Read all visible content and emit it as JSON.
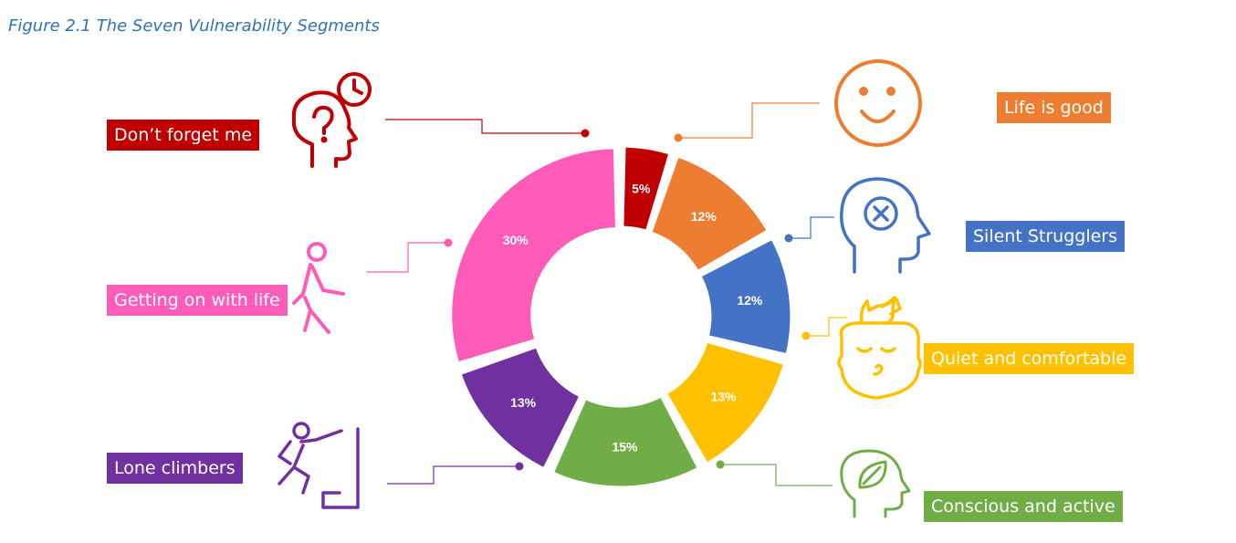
{
  "figure_title": "Figure 2.1 The Seven Vulnerability Segments",
  "colors": {
    "title": "#2E74B5",
    "life_is_good": "#ED7D31",
    "silent_strugglers": "#4472C4",
    "quiet_and_comfortable": "#FFC000",
    "conscious_and_active": "#70AD47",
    "lone_climbers": "#7030A0",
    "getting_on_with_life": "#FF5BB8",
    "dont_forget_me": "#C00000"
  },
  "chart_data": {
    "type": "pie",
    "donut": true,
    "title": "",
    "legend": "callouts around chart",
    "slices": [
      {
        "label": "Don’t forget me",
        "value": 5,
        "display": "5%",
        "color": "#C00000",
        "icon": "head-question-clock-icon"
      },
      {
        "label": "Life is good",
        "value": 12,
        "display": "12%",
        "color": "#ED7D31",
        "icon": "smiley-face-icon"
      },
      {
        "label": "Silent Strugglers",
        "value": 12,
        "display": "12%",
        "color": "#4472C4",
        "icon": "head-x-mark-icon"
      },
      {
        "label": "Quiet and comfortable",
        "value": 13,
        "display": "13%",
        "color": "#FFC000",
        "icon": "head-bird-icon"
      },
      {
        "label": "Conscious and active",
        "value": 15,
        "display": "15%",
        "color": "#70AD47",
        "icon": "head-leaf-icon"
      },
      {
        "label": "Lone climbers",
        "value": 13,
        "display": "13%",
        "color": "#7030A0",
        "icon": "climber-icon"
      },
      {
        "label": "Getting on with life",
        "value": 30,
        "display": "30%",
        "color": "#FF5BB8",
        "icon": "walking-person-icon"
      }
    ]
  }
}
